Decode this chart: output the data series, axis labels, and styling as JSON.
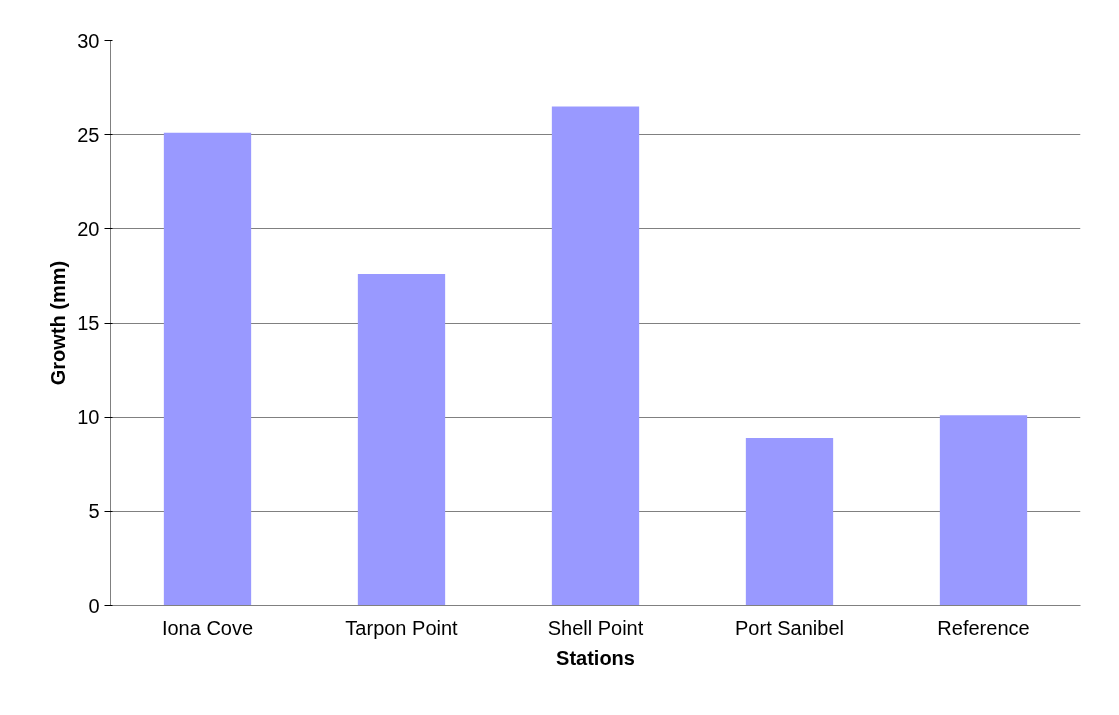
{
  "chart_data": {
    "type": "bar",
    "xlabel": "Stations",
    "ylabel": "Growth (mm)",
    "categories": [
      "Iona Cove",
      "Tarpon Point",
      "Shell Point",
      "Port Sanibel",
      "Reference"
    ],
    "values": [
      25.1,
      17.6,
      26.5,
      8.9,
      10.1
    ],
    "color": "#9999ff",
    "ylim": [
      0,
      30
    ],
    "yticks": [
      0,
      5,
      10,
      15,
      20,
      25,
      30
    ],
    "grid": "y"
  }
}
